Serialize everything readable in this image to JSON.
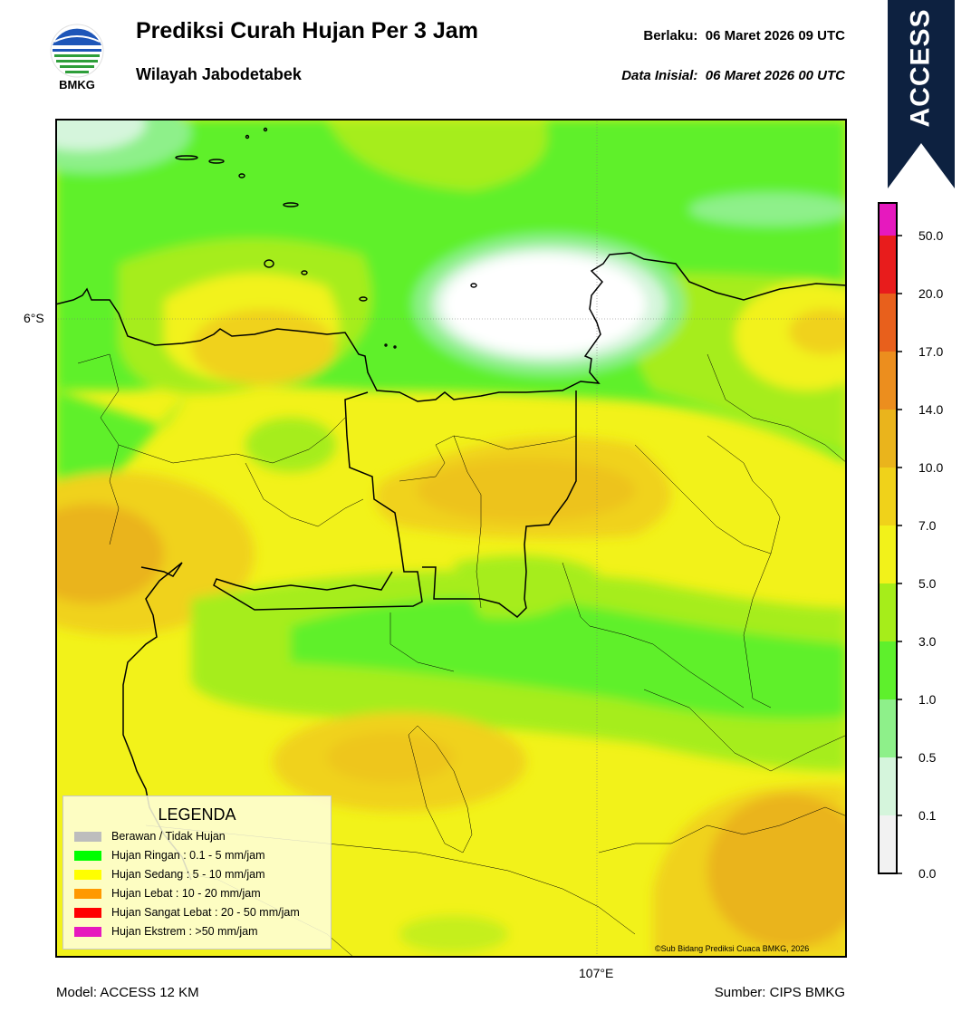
{
  "header": {
    "logo_text": "BMKG",
    "title": "Prediksi Curah Hujan Per 3 Jam",
    "subtitle": "Wilayah Jabodetabek",
    "valid_label": "Berlaku:",
    "valid_time": "06 Maret 2026 09 UTC",
    "init_label": "Data Inisial:",
    "init_time": "06 Maret 2026 00 UTC",
    "banner_text": "ACCESS"
  },
  "map": {
    "lat_label": "6°S",
    "lon_label": "107°E",
    "copyright": "©Sub Bidang Prediksi Cuaca BMKG, 2026"
  },
  "legend": {
    "title": "LEGENDA",
    "items": [
      {
        "label": "Berawan / Tidak Hujan",
        "color": "#bdbdbd"
      },
      {
        "label": "Hujan Ringan : 0.1 - 5 mm/jam",
        "color": "#00ff00"
      },
      {
        "label": "Hujan Sedang : 5 - 10 mm/jam",
        "color": "#ffff00"
      },
      {
        "label": "Hujan Lebat : 10 - 20 mm/jam",
        "color": "#ff9900"
      },
      {
        "label": "Hujan Sangat Lebat : 20 - 50 mm/jam",
        "color": "#ff0000"
      },
      {
        "label": "Hujan Ekstrem : >50 mm/jam",
        "color": "#e619be"
      }
    ]
  },
  "colorbar": {
    "ticks": [
      "0.0",
      "0.1",
      "0.5",
      "1.0",
      "3.0",
      "5.0",
      "7.0",
      "10.0",
      "14.0",
      "17.0",
      "20.0",
      "50.0"
    ],
    "colors": [
      "#f2f2f2",
      "#d5f5dc",
      "#8ef08a",
      "#5ef02c",
      "#a6ed1a",
      "#f2f21a",
      "#f0d21a",
      "#eab41c",
      "#ec8e1e",
      "#e8601c",
      "#e81c1c",
      "#e619be"
    ]
  },
  "footer": {
    "model": "Model: ACCESS 12 KM",
    "source": "Sumber: CIPS BMKG"
  }
}
